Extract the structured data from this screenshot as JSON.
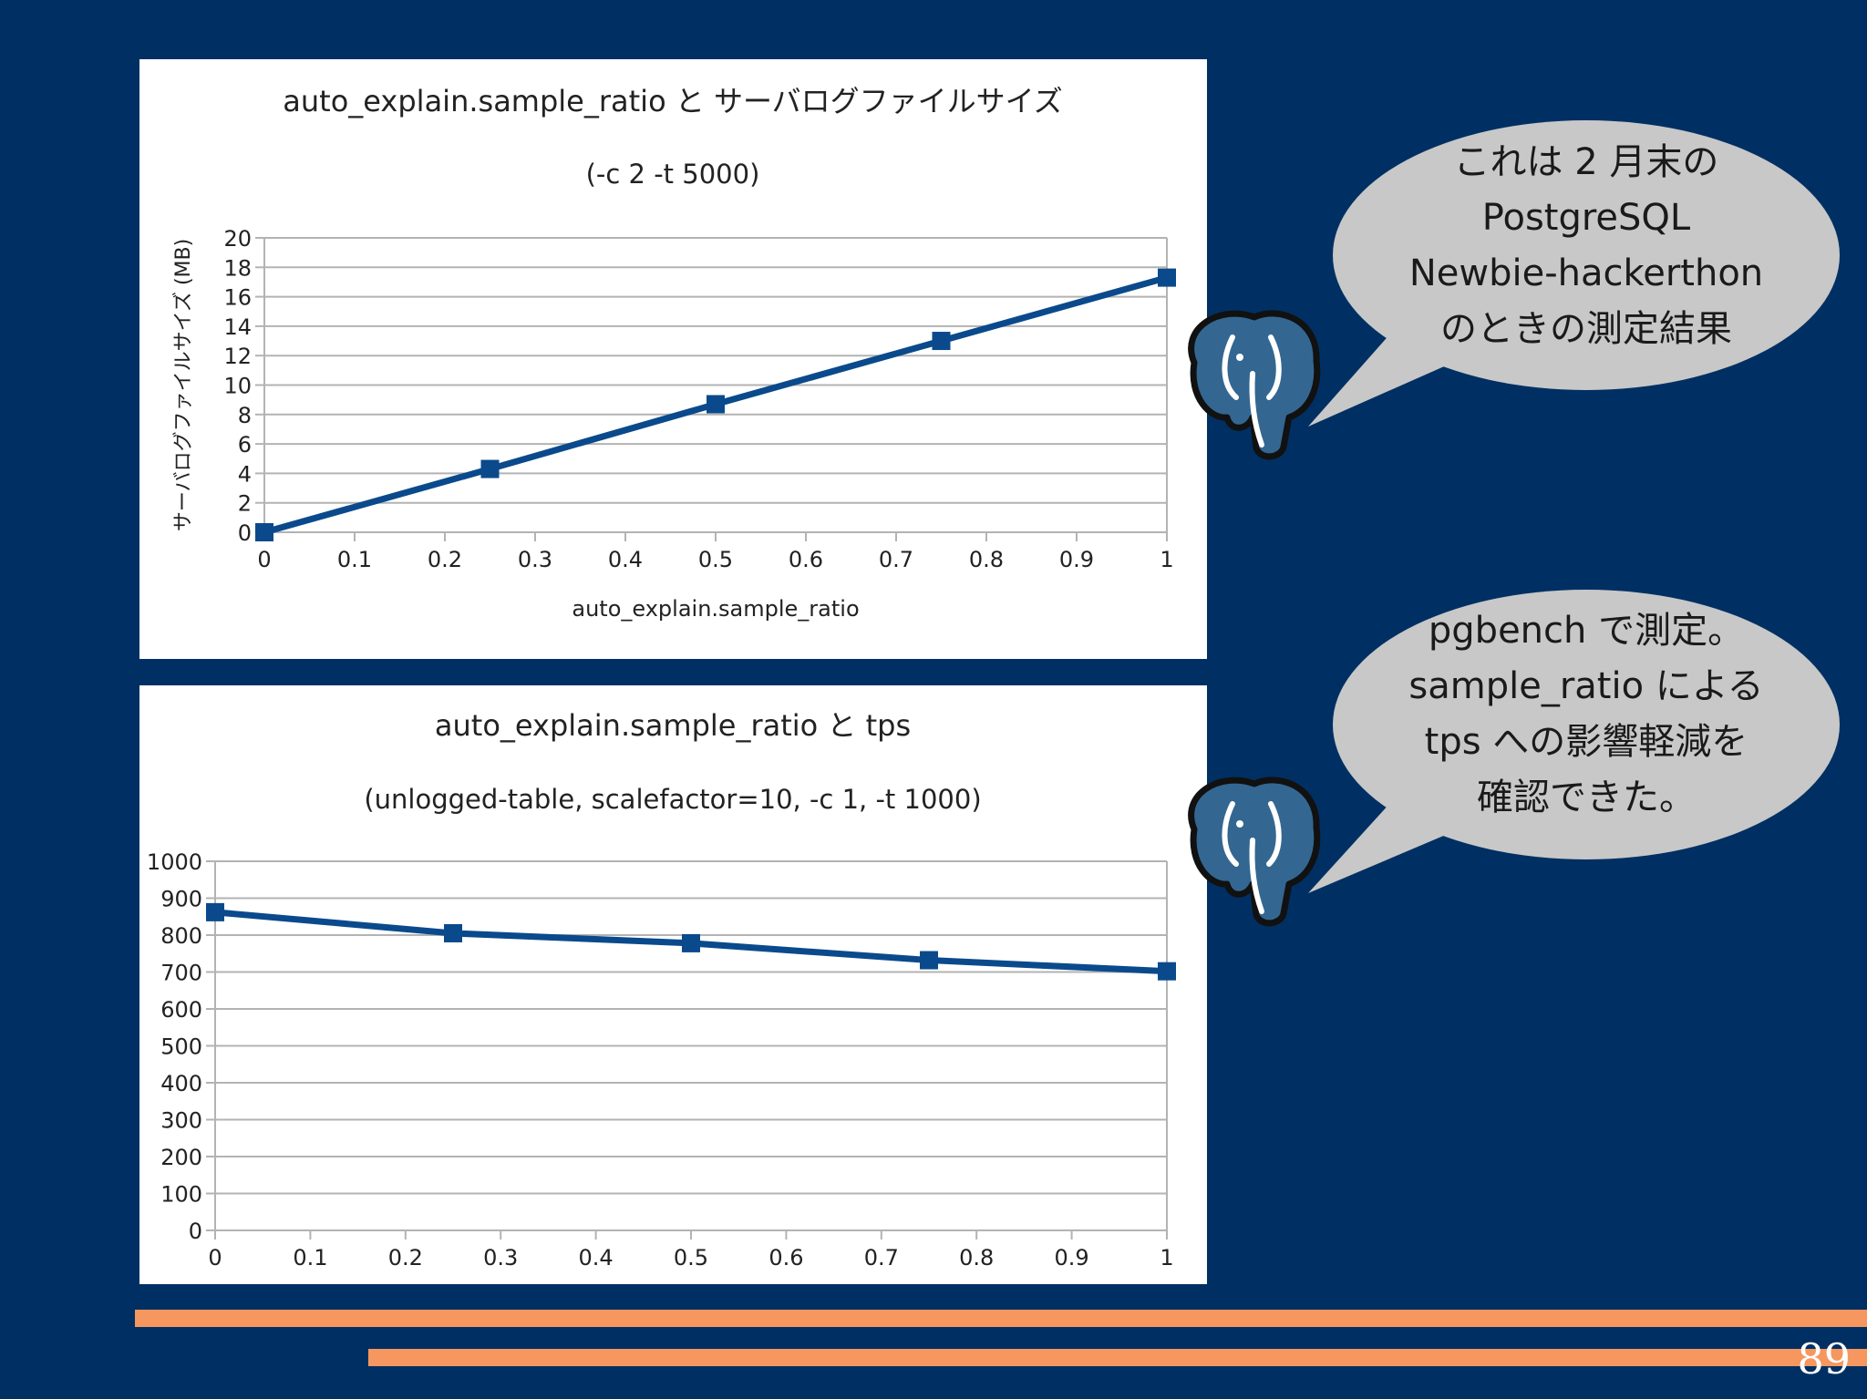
{
  "chart_data": [
    {
      "type": "line",
      "title": "auto_explain.sample_ratio  と サーバログファイルサイズ",
      "subtitle": "(-c 2 -t 5000)",
      "xlabel": "auto_explain.sample_ratio",
      "ylabel": "サーバログファイルサイズ (MB)",
      "xlim": [
        0,
        1
      ],
      "ylim": [
        0,
        20
      ],
      "xticks": [
        "0",
        "0.1",
        "0.2",
        "0.3",
        "0.4",
        "0.5",
        "0.6",
        "0.7",
        "0.8",
        "0.9",
        "1"
      ],
      "yticks": [
        "0",
        "2",
        "4",
        "6",
        "8",
        "10",
        "12",
        "14",
        "16",
        "18",
        "20"
      ],
      "x": [
        0,
        0.25,
        0.5,
        0.75,
        1
      ],
      "y": [
        0,
        4.3,
        8.7,
        13.0,
        17.3
      ],
      "grid": true,
      "color": "#0a4a8c"
    },
    {
      "type": "line",
      "title": "auto_explain.sample_ratio  と  tps",
      "subtitle": "(unlogged-table, scalefactor=10, -c 1, -t 1000)",
      "xlabel": "",
      "ylabel": "",
      "xlim": [
        0,
        1
      ],
      "ylim": [
        0,
        1000
      ],
      "xticks": [
        "0",
        "0.1",
        "0.2",
        "0.3",
        "0.4",
        "0.5",
        "0.6",
        "0.7",
        "0.8",
        "0.9",
        "1"
      ],
      "yticks": [
        "0",
        "100",
        "200",
        "300",
        "400",
        "500",
        "600",
        "700",
        "800",
        "900",
        "1000"
      ],
      "x": [
        0,
        0.25,
        0.5,
        0.75,
        1
      ],
      "y": [
        862,
        805,
        778,
        732,
        702
      ],
      "grid": true,
      "color": "#0a4a8c"
    }
  ],
  "bubbles": [
    {
      "lines": [
        "これは 2 月末の",
        "PostgreSQL",
        "Newbie-hackerthon",
        "のときの測定結果"
      ]
    },
    {
      "lines": [
        "pgbench で測定。",
        "sample_ratio による",
        "tps への影響軽減を",
        "確認できた。"
      ]
    }
  ],
  "mascot_icon": "postgresql-elephant-icon",
  "page_number": "89",
  "colors": {
    "background": "#003063",
    "accent_bar": "#f6975f",
    "series": "#0a4a8c",
    "bubble": "#c8c8c8"
  }
}
